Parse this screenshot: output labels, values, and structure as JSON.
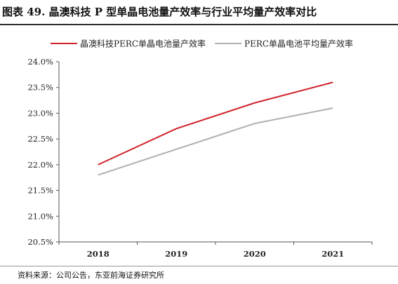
{
  "title": "图表 49. 晶澳科技 P 型单晶电池量产效率与行业平均量产效率对比",
  "source": "资料来源：公司公告，东亚前海证券研究所",
  "chart_data": {
    "type": "line",
    "categories": [
      "2018",
      "2019",
      "2020",
      "2021"
    ],
    "series": [
      {
        "name": "晶澳科技PERC单晶电池量产效率",
        "values": [
          22.0,
          22.7,
          23.2,
          23.6
        ],
        "color": "#d0242b"
      },
      {
        "name": "PERC单晶电池平均量产效率",
        "values": [
          21.8,
          22.3,
          22.8,
          23.1
        ],
        "color": "#b0b0b0"
      }
    ],
    "ylim": [
      20.5,
      24.0
    ],
    "ytick_labels": [
      "20.5%",
      "21.0%",
      "21.5%",
      "22.0%",
      "22.5%",
      "23.0%",
      "23.5%",
      "24.0%"
    ],
    "legend_position": "top",
    "grid": false,
    "xlabel": "",
    "ylabel": ""
  }
}
